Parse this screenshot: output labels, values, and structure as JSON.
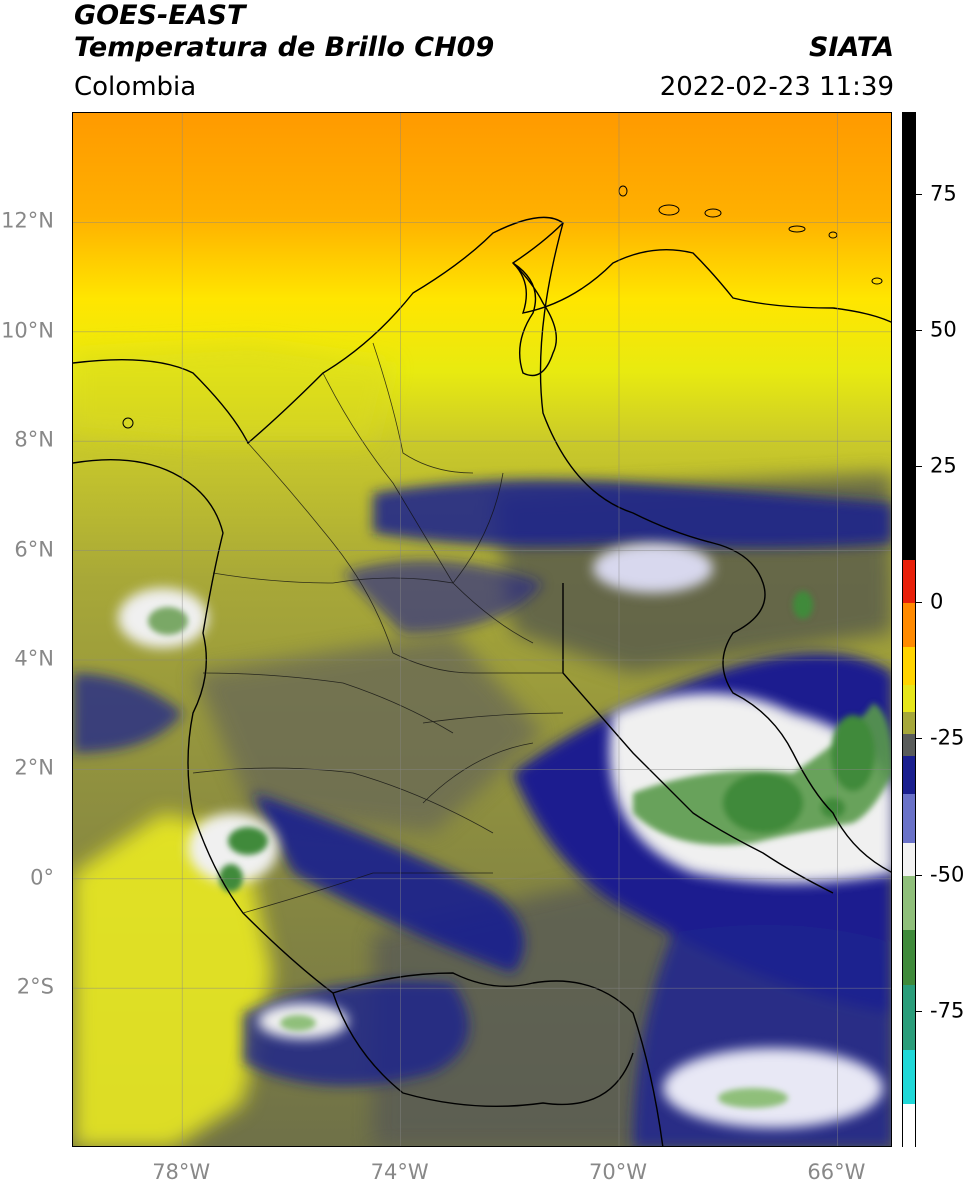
{
  "header": {
    "satellite": "GOES-EAST",
    "product": "Temperatura de Brillo CH09",
    "region": "Colombia",
    "source": "SIATA",
    "datetime": "2022-02-23 11:39"
  },
  "map": {
    "projection": "PlateCarree",
    "lon_range": [
      -80,
      -65
    ],
    "lat_range": [
      -5,
      14
    ],
    "lat_ticks": [
      {
        "value": 12,
        "label": "12°N"
      },
      {
        "value": 10,
        "label": "10°N"
      },
      {
        "value": 8,
        "label": "8°N"
      },
      {
        "value": 6,
        "label": "6°N"
      },
      {
        "value": 4,
        "label": "4°N"
      },
      {
        "value": 2,
        "label": "2°N"
      },
      {
        "value": 0,
        "label": "0°"
      },
      {
        "value": -2,
        "label": "2°S"
      }
    ],
    "lon_ticks": [
      {
        "value": -78,
        "label": "78°W"
      },
      {
        "value": -74,
        "label": "74°W"
      },
      {
        "value": -70,
        "label": "70°W"
      },
      {
        "value": -66,
        "label": "66°W"
      }
    ],
    "gridlines": true
  },
  "colorbar": {
    "min": -100,
    "max": 90,
    "ticks": [
      {
        "value": 75,
        "label": "75"
      },
      {
        "value": 50,
        "label": "50"
      },
      {
        "value": 25,
        "label": "25"
      },
      {
        "value": 0,
        "label": "0"
      },
      {
        "value": -25,
        "label": "-25"
      },
      {
        "value": -50,
        "label": "-50"
      },
      {
        "value": -75,
        "label": "-75"
      }
    ],
    "stops": [
      {
        "from": 8,
        "to": 90,
        "color": "#000000"
      },
      {
        "from": 0,
        "to": 8,
        "color": "#e8200a"
      },
      {
        "from": -8,
        "to": 0,
        "color": "#ff8a00"
      },
      {
        "from": -15,
        "to": -8,
        "color": "#ffd400"
      },
      {
        "from": -20,
        "to": -15,
        "color": "#e6e61a"
      },
      {
        "from": -24,
        "to": -20,
        "color": "#a6a83a"
      },
      {
        "from": -28,
        "to": -24,
        "color": "#595c5a"
      },
      {
        "from": -35,
        "to": -28,
        "color": "#1a1f8f"
      },
      {
        "from": -44,
        "to": -35,
        "color": "#6a72c8"
      },
      {
        "from": -50,
        "to": -44,
        "color": "#f2f2f2"
      },
      {
        "from": -60,
        "to": -50,
        "color": "#8fbf7a"
      },
      {
        "from": -70,
        "to": -60,
        "color": "#3f8a3a"
      },
      {
        "from": -82,
        "to": -70,
        "color": "#2a9d7a"
      },
      {
        "from": -92,
        "to": -82,
        "color": "#20d8d8"
      },
      {
        "from": -100,
        "to": -92,
        "color": "#ffffff"
      }
    ]
  }
}
